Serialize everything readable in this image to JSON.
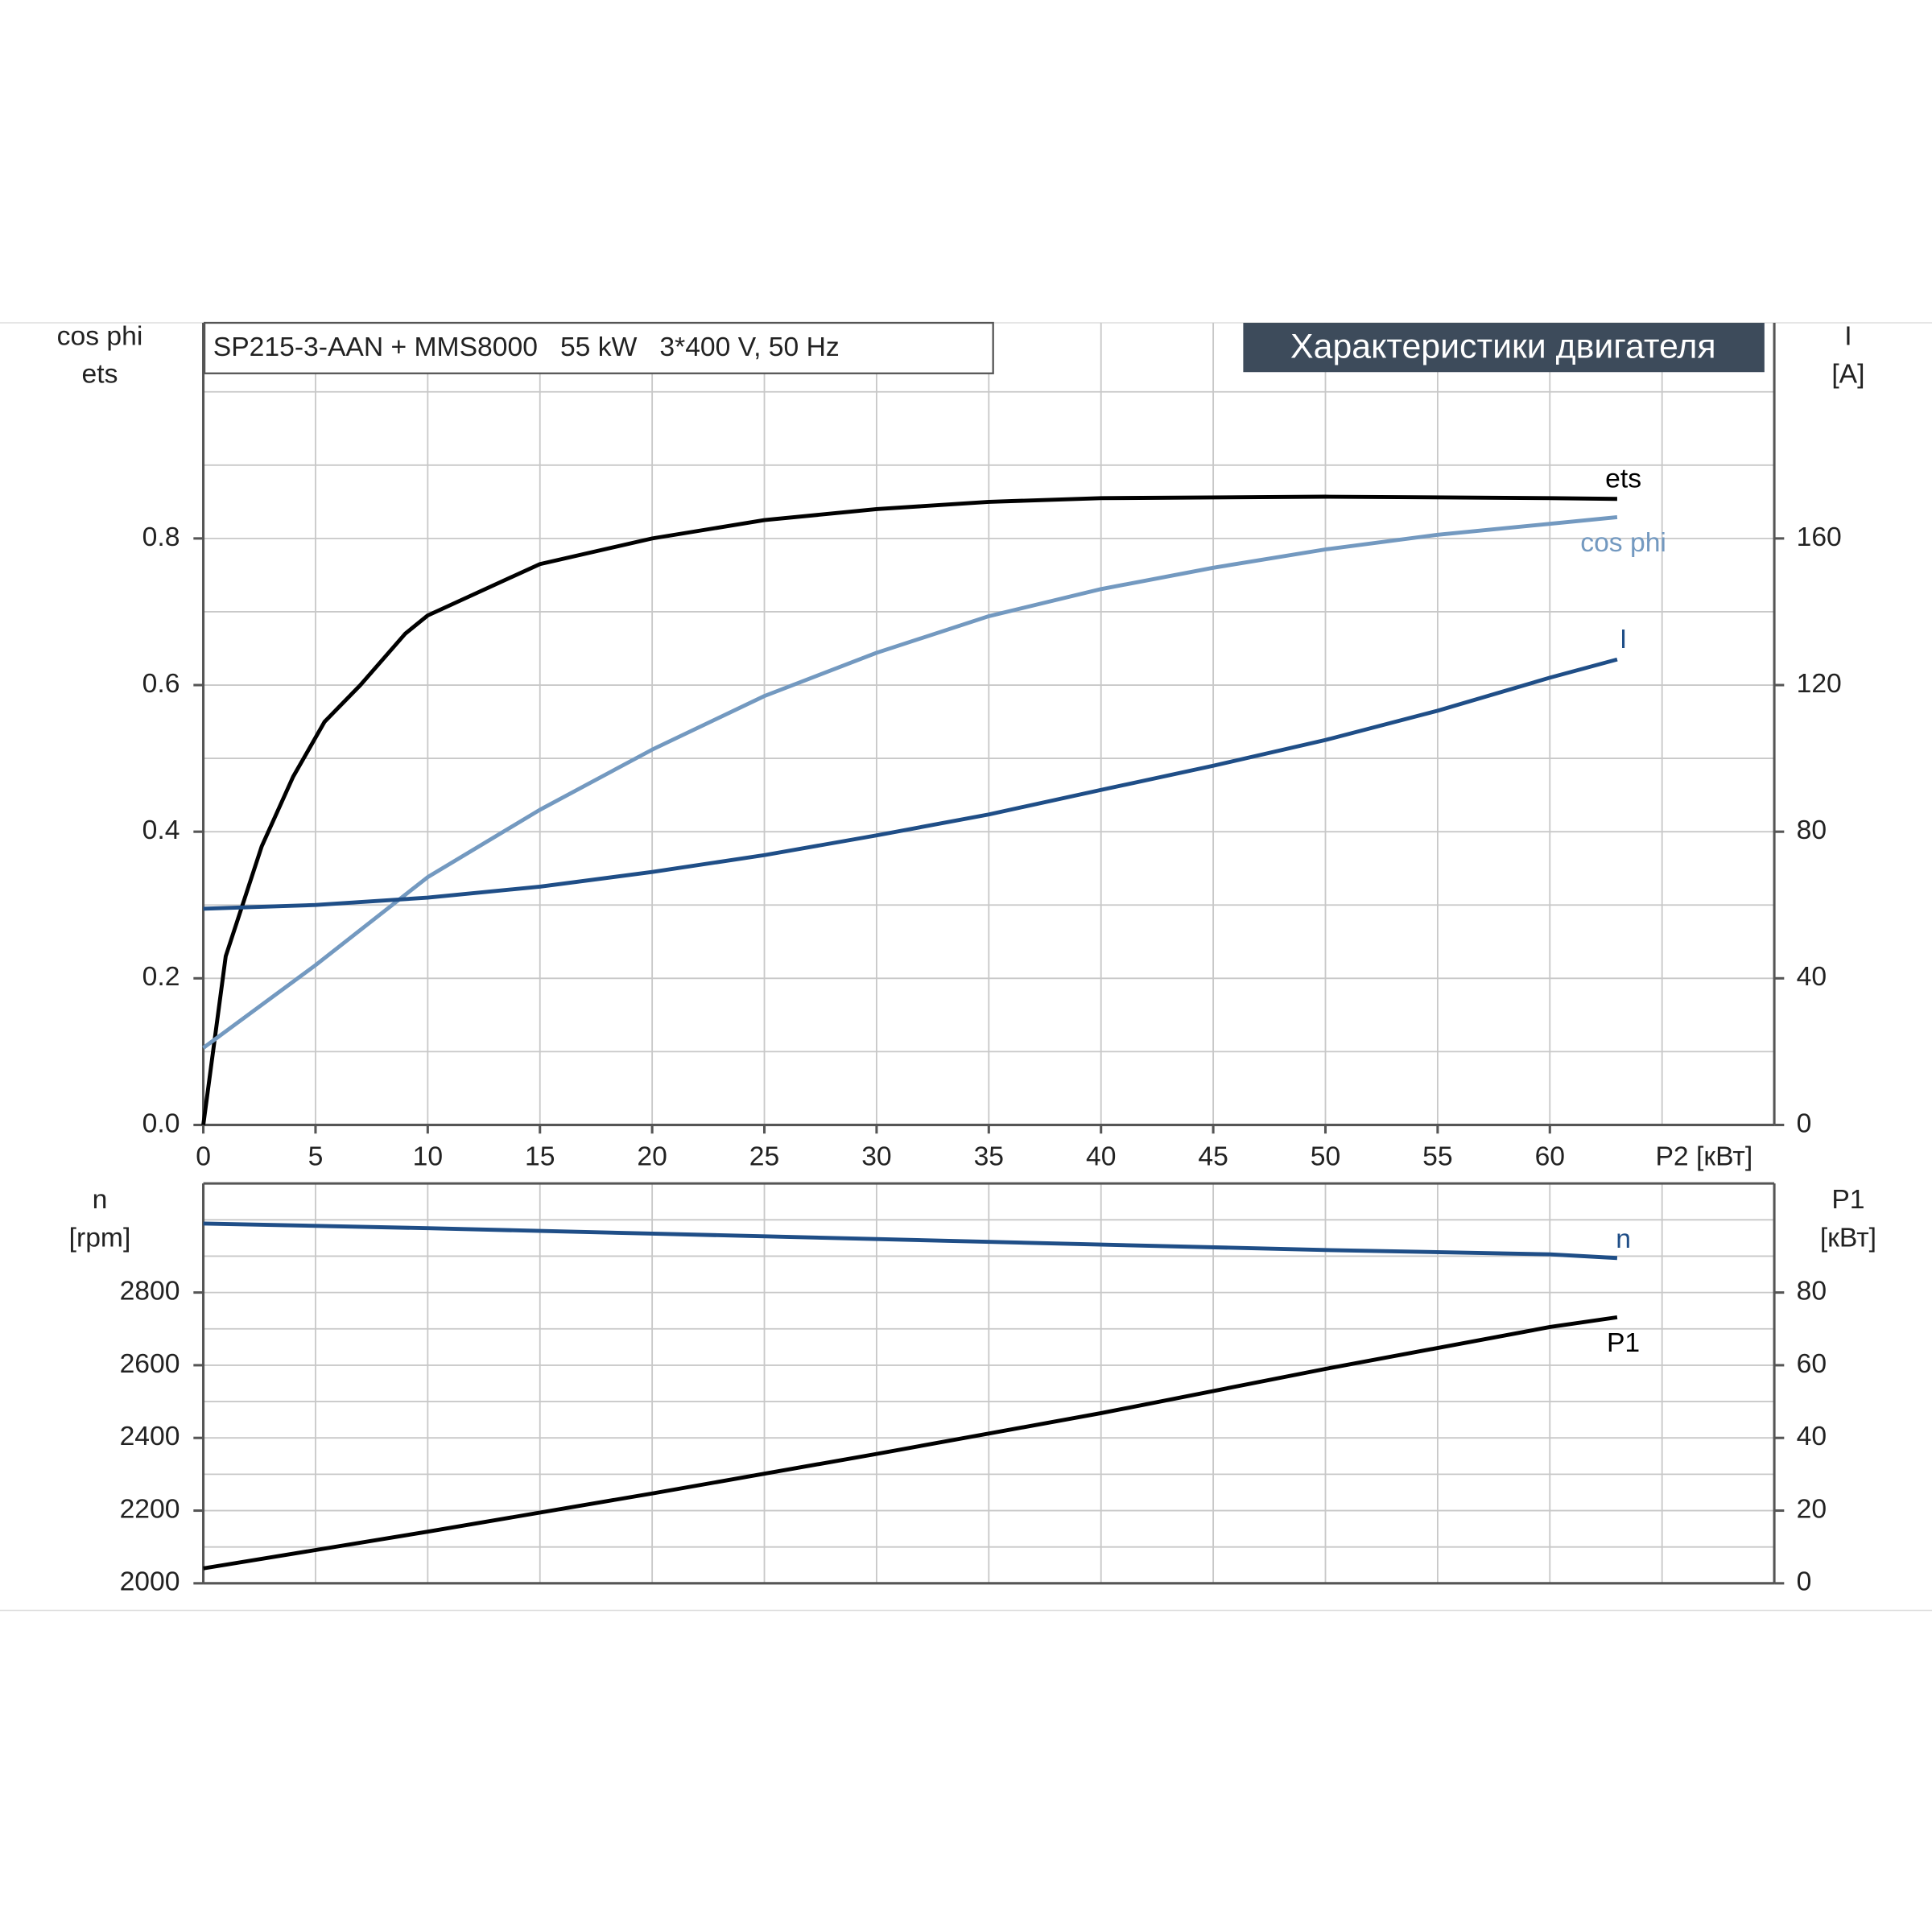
{
  "chart_data": [
    {
      "type": "line",
      "title": "SP215-3-AAN + MMS8000   55 kW   3*400 V, 50 Hz",
      "subtitle": "Характеристики двигателя",
      "ylabel_lines": [
        "cos phi",
        "ets"
      ],
      "y2label_lines": [
        "I",
        "[A]"
      ],
      "xlabel": "P2 [кВт]",
      "xlim": [
        0,
        70
      ],
      "xticks": [
        0,
        5,
        10,
        15,
        20,
        25,
        30,
        35,
        40,
        45,
        50,
        55,
        60
      ],
      "xgrid": [
        5,
        10,
        15,
        20,
        25,
        30,
        35,
        40,
        45,
        50,
        55,
        60,
        65
      ],
      "ylim": [
        0,
        1.1
      ],
      "yticks": [
        {
          "value": 0,
          "label": "0.0"
        },
        0.2,
        0.4,
        0.6,
        0.8
      ],
      "ygrid": [
        0.1,
        0.2,
        0.3,
        0.4,
        0.5,
        0.6,
        0.7,
        0.8,
        0.9,
        1.0
      ],
      "y2lim": [
        0,
        220
      ],
      "y2ticks": [
        0,
        40,
        80,
        120,
        160
      ],
      "grid": true,
      "series": [
        {
          "name": "ets",
          "color": "#000000",
          "x": [
            0,
            1,
            2.6,
            4,
            5.4,
            7,
            9,
            10,
            15,
            20,
            25,
            30,
            35,
            40,
            50,
            60,
            63
          ],
          "values": [
            0,
            0.23,
            0.38,
            0.475,
            0.55,
            0.6,
            0.67,
            0.695,
            0.765,
            0.8,
            0.825,
            0.84,
            0.85,
            0.855,
            0.857,
            0.855,
            0.854
          ]
        },
        {
          "name": "cos phi",
          "color": "#7399c0",
          "x": [
            0,
            5,
            10,
            15,
            20,
            25,
            30,
            35,
            40,
            45,
            50,
            55,
            60,
            63
          ],
          "values": [
            0.105,
            0.218,
            0.338,
            0.43,
            0.512,
            0.585,
            0.644,
            0.694,
            0.731,
            0.76,
            0.785,
            0.805,
            0.82,
            0.829
          ]
        },
        {
          "name": "I",
          "color": "#1f4e87",
          "axis": "y2",
          "x": [
            0,
            5,
            10,
            15,
            20,
            25,
            30,
            35,
            40,
            45,
            50,
            55,
            60,
            63
          ],
          "values": [
            59,
            60,
            62,
            65,
            69,
            73.6,
            79,
            84.7,
            91.4,
            98,
            105,
            113,
            122,
            127
          ]
        }
      ]
    },
    {
      "type": "line",
      "ylabel_lines": [
        "n",
        "[rpm]"
      ],
      "y2label_lines": [
        "P1",
        "[кВт]"
      ],
      "xlim": [
        0,
        70
      ],
      "xgrid": [
        5,
        10,
        15,
        20,
        25,
        30,
        35,
        40,
        45,
        50,
        55,
        60,
        65
      ],
      "ylim": [
        2000,
        3100
      ],
      "yticks": [
        2000,
        2200,
        2400,
        2600,
        2800
      ],
      "ygrid": [
        2100,
        2200,
        2300,
        2400,
        2500,
        2600,
        2700,
        2800,
        2900,
        3000
      ],
      "y2lim": [
        0,
        110
      ],
      "y2ticks": [
        0,
        20,
        40,
        60,
        80
      ],
      "grid": true,
      "series": [
        {
          "name": "n",
          "color": "#1f4e87",
          "x": [
            0,
            10,
            20,
            30,
            40,
            50,
            60,
            63
          ],
          "values": [
            2990,
            2977,
            2962,
            2947,
            2932,
            2917,
            2905,
            2895
          ]
        },
        {
          "name": "P1",
          "color": "#000000",
          "axis": "y2",
          "x": [
            0,
            10,
            20,
            30,
            40,
            50,
            60,
            63
          ],
          "values": [
            4.1,
            14.2,
            24.7,
            35.6,
            46.8,
            59,
            70.5,
            73.2
          ]
        }
      ]
    }
  ]
}
